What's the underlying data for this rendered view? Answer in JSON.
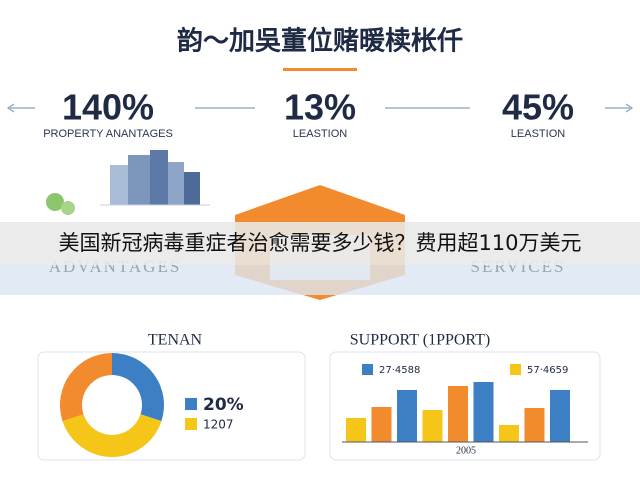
{
  "header": {
    "title": "韵～加吳董位赌暖椟枨仟"
  },
  "stats": [
    {
      "value": "140%",
      "label": "PROPERTY ANANTAGES"
    },
    {
      "value": "13%",
      "label": "LEASTION"
    },
    {
      "value": "45%",
      "label": "LEASTION"
    }
  ],
  "banner": "美国新冠病毒重症者治愈需要多少钱？费用超110万美元",
  "background_labels": [
    "ADVANTAGES",
    "SERVICES"
  ],
  "donut_panel": {
    "title": "TENAN",
    "legend": [
      {
        "label": "20%",
        "color": "#3d7fc4"
      },
      {
        "label": "1207",
        "color": "#f5c518"
      }
    ],
    "segments": [
      {
        "value": 30,
        "color": "#3d7fc4"
      },
      {
        "value": 40,
        "color": "#f5c518"
      },
      {
        "value": 30,
        "color": "#f28a2e"
      }
    ]
  },
  "bar_panel": {
    "title": "SUPPORT (1PPORT)",
    "legend": [
      {
        "label": "27·4588",
        "color": "#3d7fc4"
      },
      {
        "label": "57·4659",
        "color": "#f5c518"
      }
    ],
    "x_label": "2005",
    "bars": [
      {
        "value": 24,
        "color": "#f5c518"
      },
      {
        "value": 35,
        "color": "#f28a2e"
      },
      {
        "value": 52,
        "color": "#3d7fc4"
      },
      {
        "value": 32,
        "color": "#f5c518"
      },
      {
        "value": 56,
        "color": "#f28a2e"
      },
      {
        "value": 60,
        "color": "#3d7fc4"
      },
      {
        "value": 17,
        "color": "#f5c518"
      },
      {
        "value": 34,
        "color": "#f28a2e"
      },
      {
        "value": 52,
        "color": "#3d7fc4"
      }
    ]
  }
}
